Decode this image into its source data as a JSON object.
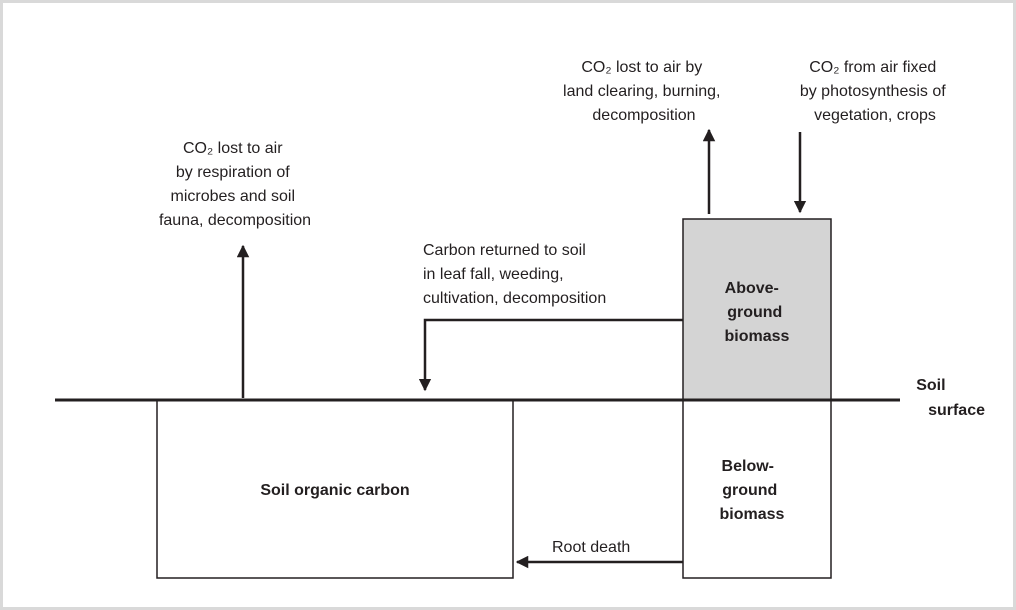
{
  "labels": {
    "soil_respiration": [
      "CO₂ lost to air",
      "by respiration of",
      "microbes and soil",
      "fauna, decomposition"
    ],
    "land_clearing": [
      "CO₂ lost to air by",
      "land clearing, burning,",
      "decomposition"
    ],
    "photosynthesis": [
      "CO₂ from air fixed",
      "by photosynthesis of",
      "vegetation, crops"
    ],
    "carbon_returned": [
      "Carbon returned to soil",
      "in leaf fall, weeding,",
      "cultivation, decomposition"
    ],
    "root_death": "Root death",
    "soil_surface": [
      "Soil",
      "surface"
    ]
  },
  "boxes": {
    "above_ground": [
      "Above-",
      "ground",
      "biomass"
    ],
    "below_ground": [
      "Below-",
      "ground",
      "biomass"
    ],
    "soil_organic_carbon": "Soil organic carbon"
  }
}
